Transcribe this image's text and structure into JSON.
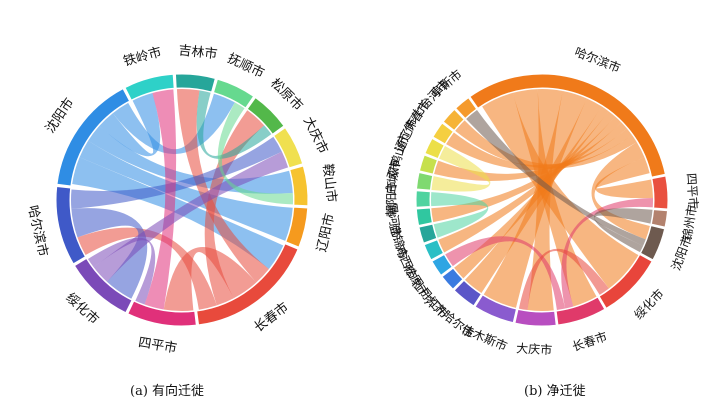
{
  "chart_data": [
    {
      "type": "chord",
      "caption": "(a) 有向迁徙",
      "segments": [
        {
          "name": "铁岭市",
          "color": "#2ed1c8",
          "value": 5
        },
        {
          "name": "吉林市",
          "color": "#26a69a",
          "value": 4
        },
        {
          "name": "抚顺市",
          "color": "#66d98f",
          "value": 4
        },
        {
          "name": "松原市",
          "color": "#53b84a",
          "value": 4
        },
        {
          "name": "大庆市",
          "color": "#f0e050",
          "value": 4
        },
        {
          "name": "鞍山市",
          "color": "#f6c32f",
          "value": 4
        },
        {
          "name": "辽阳市",
          "color": "#f59a1e",
          "value": 4
        },
        {
          "name": "长春市",
          "color": "#e84a3c",
          "value": 13
        },
        {
          "name": "四平市",
          "color": "#e0307a",
          "value": 7
        },
        {
          "name": "绥化市",
          "color": "#7b4ab8",
          "value": 7
        },
        {
          "name": "哈尔滨市",
          "color": "#3f59c8",
          "value": 8
        },
        {
          "name": "沈阳市",
          "color": "#2f8de4",
          "value": 12
        }
      ],
      "chords": [
        {
          "source": "沈阳市",
          "target": "长春市",
          "value": 3
        },
        {
          "source": "沈阳市",
          "target": "辽阳市",
          "value": 2
        },
        {
          "source": "沈阳市",
          "target": "鞍山市",
          "value": 2
        },
        {
          "source": "沈阳市",
          "target": "铁岭市",
          "value": 2
        },
        {
          "source": "沈阳市",
          "target": "抚顺市",
          "value": 2
        },
        {
          "source": "长春市",
          "target": "吉林市",
          "value": 2
        },
        {
          "source": "长春市",
          "target": "四平市",
          "value": 3
        },
        {
          "source": "长春市",
          "target": "松原市",
          "value": 2
        },
        {
          "source": "长春市",
          "target": "哈尔滨市",
          "value": 2
        },
        {
          "source": "哈尔滨市",
          "target": "绥化市",
          "value": 3
        },
        {
          "source": "哈尔滨市",
          "target": "大庆市",
          "value": 2
        },
        {
          "source": "四平市",
          "target": "铁岭市",
          "value": 2
        },
        {
          "source": "绥化市",
          "target": "大庆市",
          "value": 2
        },
        {
          "source": "吉林市",
          "target": "松原市",
          "value": 1
        },
        {
          "source": "抚顺市",
          "target": "鞍山市",
          "value": 1
        },
        {
          "source": "绥化市",
          "target": "四平市",
          "value": 1
        }
      ]
    },
    {
      "type": "chord",
      "caption": "(b) 净迁徙",
      "segments": [
        {
          "name": "哈尔滨市",
          "color": "#f07a1a",
          "value": 30
        },
        {
          "name": "四平市",
          "color": "#e9503f",
          "value": 4
        },
        {
          "name": "锦州市",
          "color": "#b3826e",
          "value": 2
        },
        {
          "name": "沈阳市",
          "color": "#6e5a4f",
          "value": 4
        },
        {
          "name": "绥化市",
          "color": "#e8453b",
          "value": 8
        },
        {
          "name": "长春市",
          "color": "#e03a6a",
          "value": 6
        },
        {
          "name": "大庆市",
          "color": "#b84ec0",
          "value": 5
        },
        {
          "name": "佳木斯市",
          "color": "#8a5bcf",
          "value": 5
        },
        {
          "name": "齐齐哈尔市",
          "color": "#5b56c8",
          "value": 3
        },
        {
          "name": "牡丹江市",
          "color": "#3a7be0",
          "value": 2
        },
        {
          "name": "松原市",
          "color": "#2ea5e3",
          "value": 2
        },
        {
          "name": "鸡西市",
          "color": "#2bbfc5",
          "value": 2
        },
        {
          "name": "盘锦市",
          "color": "#26a69a",
          "value": 2
        },
        {
          "name": "黑河市",
          "color": "#30c7a0",
          "value": 2
        },
        {
          "name": "朝阳市",
          "color": "#4fd3a0",
          "value": 2
        },
        {
          "name": "白城市",
          "color": "#7fd970",
          "value": 2
        },
        {
          "name": "双鸭山市",
          "color": "#c6e04c",
          "value": 2
        },
        {
          "name": "通辽市",
          "color": "#ecdf48",
          "value": 2
        },
        {
          "name": "伊春市",
          "color": "#f5cf40",
          "value": 2
        },
        {
          "name": "七台河市",
          "color": "#f6b336",
          "value": 2
        },
        {
          "name": "阜新市",
          "color": "#f59a2c",
          "value": 2
        }
      ],
      "chords": [
        {
          "source": "哈尔滨市",
          "target": "绥化市",
          "value": 4
        },
        {
          "source": "哈尔滨市",
          "target": "长春市",
          "value": 3
        },
        {
          "source": "哈尔滨市",
          "target": "大庆市",
          "value": 3
        },
        {
          "source": "哈尔滨市",
          "target": "佳木斯市",
          "value": 3
        },
        {
          "source": "哈尔滨市",
          "target": "齐齐哈尔市",
          "value": 2
        },
        {
          "source": "哈尔滨市",
          "target": "牡丹江市",
          "value": 1
        },
        {
          "source": "哈尔滨市",
          "target": "鸡西市",
          "value": 1
        },
        {
          "source": "哈尔滨市",
          "target": "黑河市",
          "value": 1
        },
        {
          "source": "哈尔滨市",
          "target": "双鸭山市",
          "value": 1
        },
        {
          "source": "哈尔滨市",
          "target": "伊春市",
          "value": 1
        },
        {
          "source": "哈尔滨市",
          "target": "七台河市",
          "value": 1
        },
        {
          "source": "哈尔滨市",
          "target": "沈阳市",
          "value": 2
        },
        {
          "source": "哈尔滨市",
          "target": "四平市",
          "value": 2
        },
        {
          "source": "长春市",
          "target": "四平市",
          "value": 1
        },
        {
          "source": "长春市",
          "target": "松原市",
          "value": 1
        },
        {
          "source": "沈阳市",
          "target": "阜新市",
          "value": 1
        },
        {
          "source": "沈阳市",
          "target": "锦州市",
          "value": 1
        },
        {
          "source": "绥化市",
          "target": "大庆市",
          "value": 1
        },
        {
          "source": "朝阳市",
          "target": "盘锦市",
          "value": 1
        },
        {
          "source": "通辽市",
          "target": "白城市",
          "value": 1
        }
      ]
    }
  ]
}
